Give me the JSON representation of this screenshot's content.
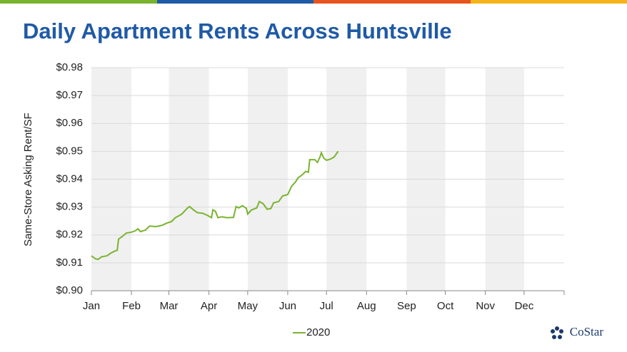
{
  "chart_data": {
    "type": "line",
    "title": "Daily Apartment Rents Across Huntsville",
    "y_label": "Same-Store Asking Rent/SF",
    "x": [
      0,
      3,
      5,
      8,
      12,
      15,
      18,
      20,
      21,
      24,
      27,
      31,
      34,
      36,
      38,
      42,
      45,
      50,
      55,
      58,
      62,
      65,
      70,
      74,
      76,
      79,
      82,
      86,
      90,
      93,
      94,
      96,
      98,
      101,
      105,
      110,
      112,
      114,
      117,
      120,
      121,
      124,
      128,
      130,
      133,
      136,
      139,
      141,
      145,
      148,
      152,
      155,
      158,
      160,
      163,
      166,
      168,
      169,
      173,
      175,
      177,
      178,
      180,
      182,
      185,
      188,
      191
    ],
    "series": [
      {
        "name": "2020",
        "color": "#7ab32e",
        "values": [
          0.9125,
          0.9115,
          0.9112,
          0.9122,
          0.9125,
          0.9135,
          0.9142,
          0.9145,
          0.9185,
          0.9195,
          0.9207,
          0.921,
          0.9215,
          0.9222,
          0.9212,
          0.9218,
          0.9232,
          0.923,
          0.9235,
          0.9242,
          0.9248,
          0.9262,
          0.9275,
          0.9295,
          0.9302,
          0.929,
          0.928,
          0.9278,
          0.927,
          0.9262,
          0.929,
          0.9285,
          0.9262,
          0.9265,
          0.9262,
          0.9263,
          0.9302,
          0.9297,
          0.9305,
          0.9295,
          0.9275,
          0.929,
          0.9297,
          0.932,
          0.9312,
          0.9292,
          0.9295,
          0.9315,
          0.932,
          0.934,
          0.9345,
          0.9375,
          0.939,
          0.9405,
          0.9415,
          0.9428,
          0.9425,
          0.947,
          0.947,
          0.946,
          0.948,
          0.9495,
          0.9475,
          0.9468,
          0.9472,
          0.948,
          0.95
        ]
      }
    ],
    "xlim": [
      0,
      366
    ],
    "xticks": [
      {
        "value": 0,
        "label": "Jan"
      },
      {
        "value": 31,
        "label": "Feb"
      },
      {
        "value": 60,
        "label": "Mar"
      },
      {
        "value": 91,
        "label": "Apr"
      },
      {
        "value": 121,
        "label": "May"
      },
      {
        "value": 152,
        "label": "Jun"
      },
      {
        "value": 182,
        "label": "Jul"
      },
      {
        "value": 213,
        "label": "Aug"
      },
      {
        "value": 244,
        "label": "Sep"
      },
      {
        "value": 274,
        "label": "Oct"
      },
      {
        "value": 305,
        "label": "Nov"
      },
      {
        "value": 335,
        "label": "Dec"
      }
    ],
    "ylim": [
      0.9,
      0.98
    ],
    "yticks": [
      {
        "value": 0.9,
        "label": "$0.90"
      },
      {
        "value": 0.91,
        "label": "$0.91"
      },
      {
        "value": 0.92,
        "label": "$0.92"
      },
      {
        "value": 0.93,
        "label": "$0.93"
      },
      {
        "value": 0.94,
        "label": "$0.94"
      },
      {
        "value": 0.95,
        "label": "$0.95"
      },
      {
        "value": 0.96,
        "label": "$0.96"
      },
      {
        "value": 0.97,
        "label": "$0.97"
      },
      {
        "value": 0.98,
        "label": "$0.98"
      }
    ],
    "grid": true,
    "legend": "bottom",
    "brand": "CoStar"
  }
}
